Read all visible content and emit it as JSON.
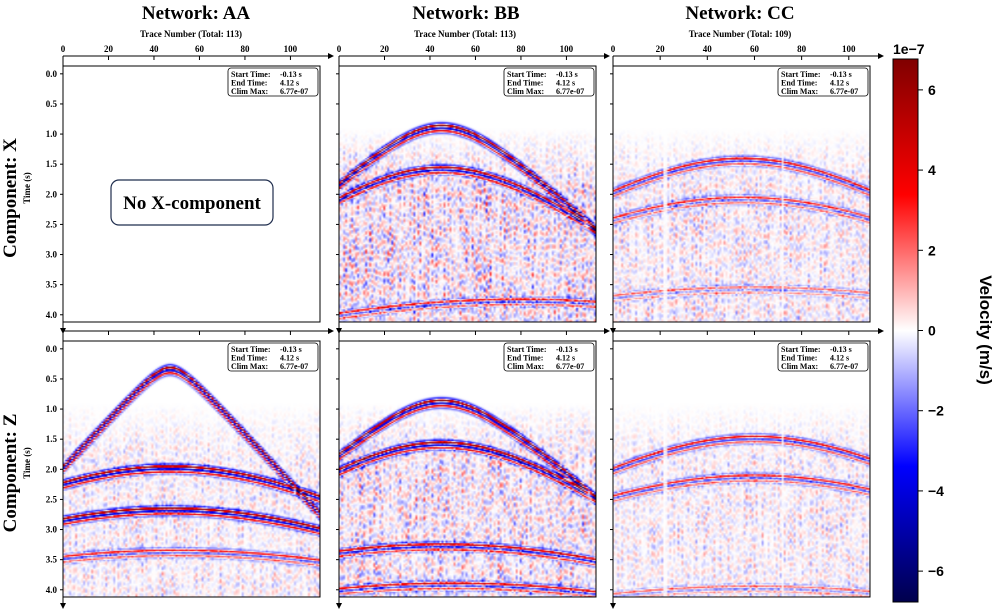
{
  "chart_data": {
    "type": "heatmap",
    "colormap": "seismic",
    "colorbar": {
      "label": "Velocity (m/s)",
      "exponent_label": "1e−7",
      "ticks": [
        6,
        4,
        2,
        0,
        -2,
        -4,
        -6
      ],
      "tick_labels": [
        "6",
        "4",
        "2",
        "0",
        "−2",
        "−4",
        "−6"
      ],
      "range": [
        -6.77,
        6.77
      ],
      "colors": [
        "#00004c",
        "#0000ff",
        "#ffffff",
        "#ff0000",
        "#800000"
      ]
    },
    "columns": [
      {
        "title": "Network: AA",
        "xlabel": "Trace Number (Total: 113)",
        "xlim": [
          0,
          113
        ],
        "xticks": [
          0,
          20,
          40,
          60,
          80,
          100
        ]
      },
      {
        "title": "Network: BB",
        "xlabel": "Trace Number (Total: 113)",
        "xlim": [
          0,
          113
        ],
        "xticks": [
          0,
          20,
          40,
          60,
          80,
          100
        ]
      },
      {
        "title": "Network: CC",
        "xlabel": "Trace Number (Total: 109)",
        "xlim": [
          0,
          109
        ],
        "xticks": [
          0,
          20,
          40,
          60,
          80,
          100
        ]
      }
    ],
    "rows": [
      {
        "label": "Component: X",
        "ylabel": "Time (s)"
      },
      {
        "label": "Component: Z",
        "ylabel": "Time (s)"
      }
    ],
    "ylim": [
      4.12,
      -0.13
    ],
    "yticks": [
      0.0,
      0.5,
      1.0,
      1.5,
      2.0,
      2.5,
      3.0,
      3.5,
      4.0
    ],
    "ytick_labels": [
      "0.0",
      "0.5",
      "1.0",
      "1.5",
      "2.0",
      "2.5",
      "3.0",
      "3.5",
      "4.0"
    ],
    "info_box": {
      "lines": [
        {
          "key": "Start Time:",
          "value": "-0.13 s"
        },
        {
          "key": "End Time:",
          "value": "4.12 s"
        },
        {
          "key": "Clim Max:",
          "value": "6.77e-07"
        }
      ]
    },
    "panels": [
      {
        "row": 0,
        "col": 0,
        "empty": true,
        "message": "No X-component",
        "events": []
      },
      {
        "row": 0,
        "col": 1,
        "empty": false,
        "noise": 0.55,
        "events": [
          {
            "t0": 0.85,
            "apex": 45,
            "vel": 38,
            "amp": 1.0
          },
          {
            "t0": 1.55,
            "apex": 45,
            "vel": 45,
            "amp": 0.85
          },
          {
            "t0": 3.75,
            "apex": 80,
            "vel": 80,
            "amp": 0.5
          }
        ]
      },
      {
        "row": 0,
        "col": 2,
        "empty": false,
        "noise": 0.35,
        "events": [
          {
            "t0": 1.4,
            "apex": 55,
            "vel": 55,
            "amp": 0.6
          },
          {
            "t0": 2.05,
            "apex": 55,
            "vel": 60,
            "amp": 0.45
          },
          {
            "t0": 3.55,
            "apex": 60,
            "vel": 80,
            "amp": 0.3
          }
        ]
      },
      {
        "row": 1,
        "col": 0,
        "empty": false,
        "noise": 0.3,
        "events": [
          {
            "t0": 0.3,
            "apex": 47,
            "vel": 33,
            "amp": 1.0
          },
          {
            "t0": 1.95,
            "apex": 47,
            "vel": 60,
            "amp": 0.95
          },
          {
            "t0": 2.65,
            "apex": 47,
            "vel": 65,
            "amp": 0.95
          },
          {
            "t0": 3.35,
            "apex": 50,
            "vel": 80,
            "amp": 0.5
          }
        ]
      },
      {
        "row": 1,
        "col": 1,
        "empty": false,
        "noise": 0.5,
        "events": [
          {
            "t0": 0.85,
            "apex": 45,
            "vel": 40,
            "amp": 1.0
          },
          {
            "t0": 1.55,
            "apex": 45,
            "vel": 48,
            "amp": 0.95
          },
          {
            "t0": 3.25,
            "apex": 45,
            "vel": 70,
            "amp": 0.7
          },
          {
            "t0": 3.9,
            "apex": 50,
            "vel": 80,
            "amp": 0.6
          }
        ]
      },
      {
        "row": 1,
        "col": 2,
        "empty": false,
        "noise": 0.3,
        "events": [
          {
            "t0": 1.45,
            "apex": 60,
            "vel": 60,
            "amp": 0.6
          },
          {
            "t0": 2.1,
            "apex": 60,
            "vel": 65,
            "amp": 0.5
          },
          {
            "t0": 3.95,
            "apex": 60,
            "vel": 80,
            "amp": 0.3
          }
        ]
      }
    ]
  }
}
